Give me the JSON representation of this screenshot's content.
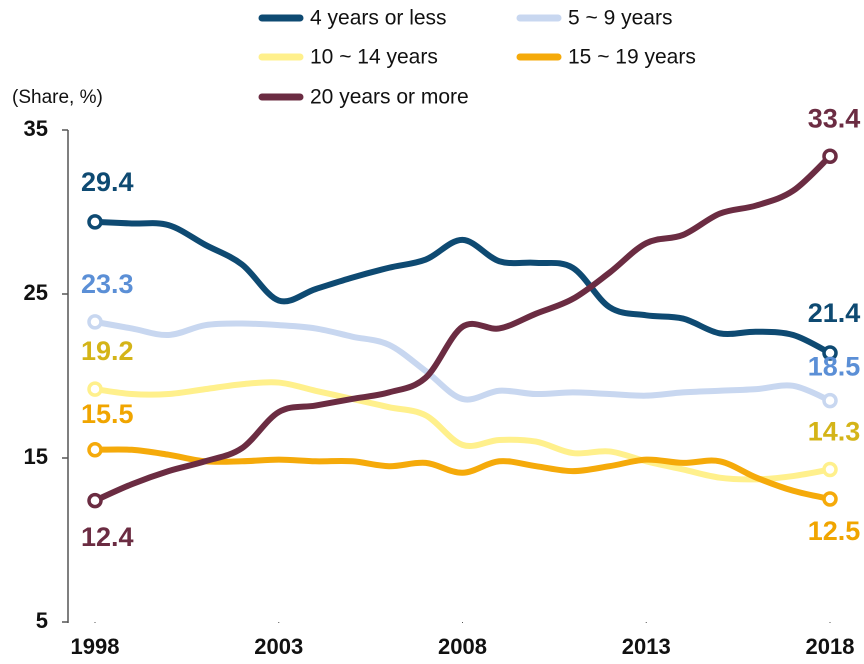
{
  "chart_data": {
    "type": "line",
    "y_axis_label": "(Share, %)",
    "x": [
      1998,
      1999,
      2000,
      2001,
      2002,
      2003,
      2004,
      2005,
      2006,
      2007,
      2008,
      2009,
      2010,
      2011,
      2012,
      2013,
      2014,
      2015,
      2016,
      2017,
      2018
    ],
    "xlim": [
      1998,
      2018
    ],
    "xticks": [
      1998,
      2003,
      2008,
      2013,
      2018
    ],
    "ylim": [
      5,
      35
    ],
    "yticks": [
      5,
      15,
      25,
      35
    ],
    "series": [
      {
        "name": "4 years or less",
        "color": "#0e4a72",
        "label_color": "#0e4a72",
        "values": [
          29.4,
          29.3,
          29.2,
          28.0,
          26.8,
          24.6,
          25.3,
          26.0,
          26.6,
          27.1,
          28.3,
          27.0,
          26.9,
          26.6,
          24.2,
          23.7,
          23.5,
          22.6,
          22.7,
          22.5,
          21.4
        ]
      },
      {
        "name": "5 ~ 9 years",
        "color": "#c8d7f0",
        "label_color": "#5b8fd6",
        "values": [
          23.3,
          22.9,
          22.5,
          23.1,
          23.2,
          23.1,
          22.9,
          22.4,
          21.9,
          20.3,
          18.6,
          19.1,
          18.9,
          19.0,
          18.9,
          18.8,
          19.0,
          19.1,
          19.2,
          19.4,
          18.5
        ]
      },
      {
        "name": "10 ~ 14 years",
        "color": "#fff08c",
        "label_color": "#d4b418",
        "values": [
          19.2,
          18.9,
          18.9,
          19.2,
          19.5,
          19.6,
          19.1,
          18.6,
          18.1,
          17.6,
          15.8,
          16.1,
          16.0,
          15.3,
          15.4,
          14.8,
          14.3,
          13.8,
          13.7,
          13.9,
          14.3
        ]
      },
      {
        "name": "15 ~ 19 years",
        "color": "#f5aa0a",
        "label_color": "#f0a500",
        "values": [
          15.5,
          15.5,
          15.2,
          14.8,
          14.8,
          14.9,
          14.8,
          14.8,
          14.5,
          14.7,
          14.1,
          14.8,
          14.5,
          14.2,
          14.5,
          14.9,
          14.7,
          14.8,
          13.8,
          13.0,
          12.5
        ]
      },
      {
        "name": "20 years or more",
        "color": "#6b2c42",
        "label_color": "#6b2c42",
        "values": [
          12.4,
          13.4,
          14.2,
          14.8,
          15.6,
          17.8,
          18.2,
          18.6,
          19.0,
          19.9,
          23.0,
          22.9,
          23.8,
          24.7,
          26.3,
          28.1,
          28.6,
          29.9,
          30.4,
          31.3,
          33.4
        ]
      }
    ]
  }
}
